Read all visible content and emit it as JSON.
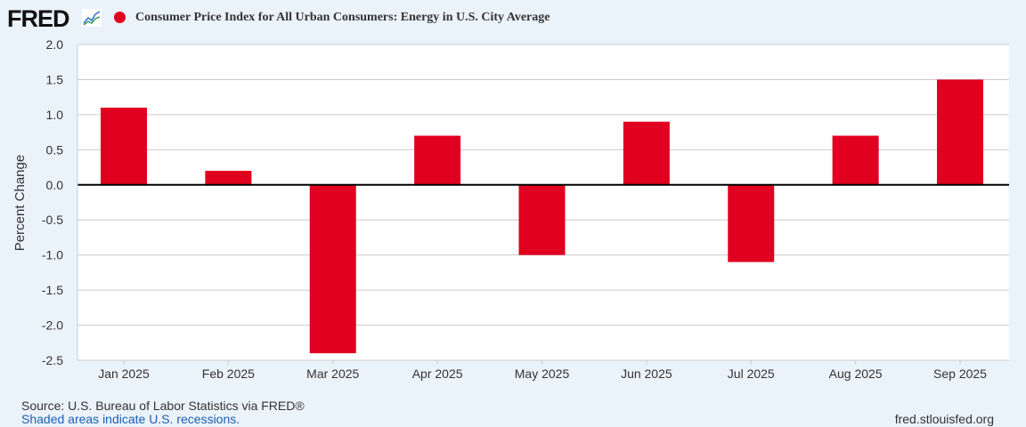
{
  "logo": {
    "text": "FRED"
  },
  "chart_data": {
    "type": "bar",
    "title": "Consumer Price Index for All Urban Consumers: Energy in U.S. City Average",
    "ylabel": "Percent Change",
    "xlabel": "",
    "categories": [
      "Jan 2025",
      "Feb 2025",
      "Mar 2025",
      "Apr 2025",
      "May 2025",
      "Jun 2025",
      "Jul 2025",
      "Aug 2025",
      "Sep 2025"
    ],
    "series": [
      {
        "name": "Consumer Price Index for All Urban Consumers: Energy in U.S. City Average",
        "color": "#e1001f",
        "values": [
          1.1,
          0.2,
          -2.4,
          0.7,
          -1.0,
          0.9,
          -1.1,
          0.7,
          1.5
        ]
      }
    ],
    "ylim": [
      -2.5,
      2.0
    ],
    "yticks": [
      "2.0",
      "1.5",
      "1.0",
      "0.5",
      "0.0",
      "-0.5",
      "-1.0",
      "-1.5",
      "-2.0",
      "-2.5"
    ],
    "grid": true,
    "legend": "top-left"
  },
  "footer": {
    "source": "Source: U.S. Bureau of Labor Statistics via FRED®",
    "recessions": "Shaded areas indicate U.S. recessions.",
    "url": "fred.stlouisfed.org"
  }
}
